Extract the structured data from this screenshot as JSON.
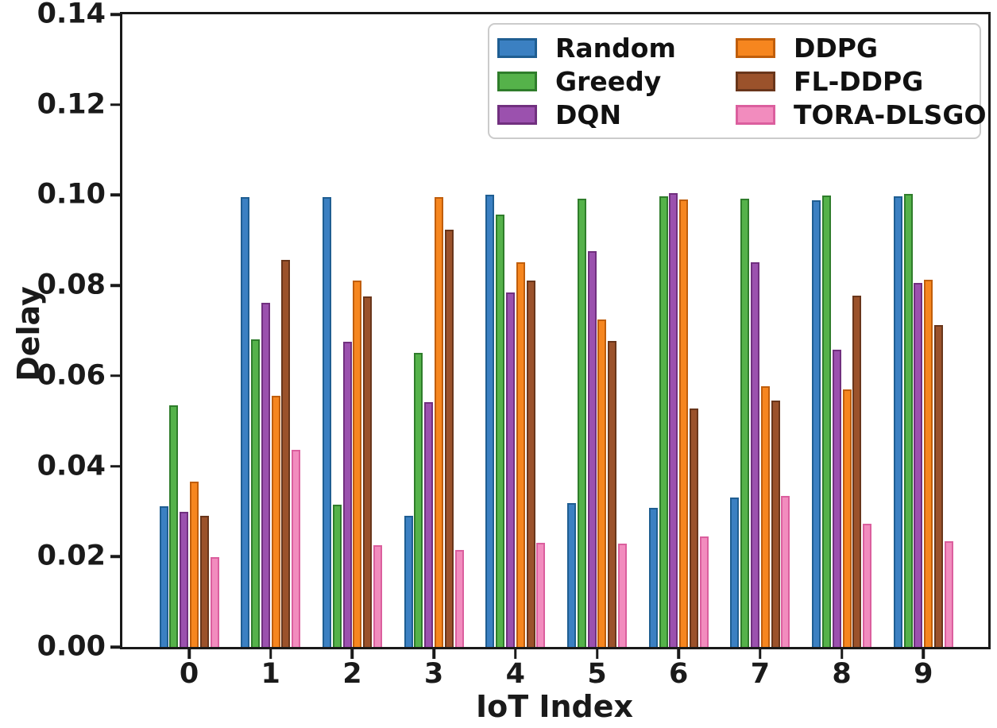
{
  "chart_data": {
    "type": "bar",
    "title": "",
    "xlabel": "IoT Index",
    "ylabel": "Delay",
    "ylim": [
      0,
      0.14
    ],
    "ytick_values": [
      0.0,
      0.02,
      0.04,
      0.06,
      0.08,
      0.1,
      0.12,
      0.14
    ],
    "ytick_labels": [
      "0.00",
      "0.02",
      "0.04",
      "0.06",
      "0.08",
      "0.10",
      "0.12",
      "0.14"
    ],
    "categories": [
      "0",
      "1",
      "2",
      "3",
      "4",
      "5",
      "6",
      "7",
      "8",
      "9"
    ],
    "grid": false,
    "legend": {
      "position": "upper right",
      "columns": 2,
      "fill_order": "column-major",
      "border_color": "#cbcbcb"
    },
    "series": [
      {
        "name": "Random",
        "color": "#3B80C2",
        "edge_color": "#1F5E92",
        "values": [
          0.0312,
          0.0995,
          0.0995,
          0.029,
          0.1,
          0.0318,
          0.0308,
          0.033,
          0.0988,
          0.0997
        ]
      },
      {
        "name": "Greedy",
        "color": "#55B24A",
        "edge_color": "#2F7D2B",
        "values": [
          0.0534,
          0.068,
          0.0314,
          0.0651,
          0.0956,
          0.0992,
          0.0997,
          0.0992,
          0.0999,
          0.1002
        ]
      },
      {
        "name": "DQN",
        "color": "#9B51AE",
        "edge_color": "#71307F",
        "values": [
          0.0299,
          0.0762,
          0.0676,
          0.0542,
          0.0785,
          0.0876,
          0.1004,
          0.0852,
          0.0657,
          0.0805
        ]
      },
      {
        "name": "DDPG",
        "color": "#F6861F",
        "edge_color": "#C05E0B",
        "values": [
          0.0365,
          0.0556,
          0.081,
          0.0995,
          0.0851,
          0.0724,
          0.0991,
          0.0577,
          0.057,
          0.0813
        ]
      },
      {
        "name": "FL-DDPG",
        "color": "#9B522B",
        "edge_color": "#69361B",
        "values": [
          0.029,
          0.0856,
          0.0776,
          0.0924,
          0.081,
          0.0677,
          0.0527,
          0.0546,
          0.0777,
          0.0713
        ]
      },
      {
        "name": "TORA-DLSGO",
        "color": "#F28CBE",
        "edge_color": "#DB5F9E",
        "values": [
          0.0198,
          0.0437,
          0.0225,
          0.0215,
          0.023,
          0.0229,
          0.0245,
          0.0334,
          0.0272,
          0.0234
        ]
      }
    ]
  }
}
